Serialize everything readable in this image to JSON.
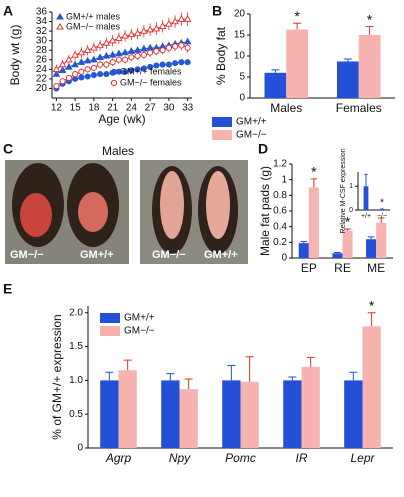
{
  "chart_data": [
    {
      "type": "line",
      "panel": "A",
      "ylabel": "Body wt (g)",
      "xlabel": "Age (wk)",
      "x": [
        12,
        13,
        14,
        15,
        16,
        17,
        18,
        19,
        20,
        21,
        22,
        23,
        24,
        25,
        26,
        27,
        28,
        29,
        30,
        31,
        32,
        33
      ],
      "xlim": [
        11.3,
        33.7
      ],
      "xticks": [
        12,
        15,
        18,
        21,
        24,
        27,
        30,
        33
      ],
      "ylim": [
        18,
        36
      ],
      "yticks": [
        20,
        22,
        24,
        26,
        28,
        30,
        32,
        34,
        36
      ],
      "series": [
        {
          "name": "GM+/+ males",
          "color": "#2457d6",
          "marker": "triangle",
          "filled": true,
          "values": [
            23,
            23.8,
            24.5,
            25,
            25.5,
            25.8,
            26,
            26.5,
            26.8,
            27,
            27.3,
            27.5,
            27.8,
            28,
            28.3,
            28.5,
            28.5,
            28.8,
            29,
            29.3,
            29.5,
            29.8
          ],
          "errors": [
            0.6,
            0.6,
            0.6,
            0.6,
            0.6,
            0.6,
            0.6,
            0.6,
            0.6,
            0.6,
            0.6,
            0.6,
            0.6,
            0.6,
            0.6,
            0.6,
            0.6,
            0.6,
            0.6,
            0.6,
            0.6,
            0.6
          ]
        },
        {
          "name": "GM−/− males",
          "color": "#e0302c",
          "marker": "triangle",
          "filled": false,
          "values": [
            24,
            25,
            26,
            27,
            27.5,
            28,
            28.5,
            29,
            29.5,
            30,
            30.5,
            31,
            31.3,
            31.5,
            32,
            32.3,
            32.5,
            33,
            33.5,
            34,
            34.5,
            34.5
          ],
          "errors": [
            1,
            1,
            1,
            1,
            1.1,
            1.1,
            1.1,
            1.1,
            1.2,
            1.2,
            1.2,
            1.2,
            1.2,
            1.2,
            1.3,
            1.3,
            1.3,
            1.3,
            1.3,
            1.3,
            1.4,
            1.4
          ]
        },
        {
          "name": "GM+/+ females",
          "color": "#2457d6",
          "marker": "circle",
          "filled": true,
          "values": [
            20,
            21,
            21.5,
            22,
            22.3,
            22.5,
            22.8,
            23,
            23,
            23.3,
            23.5,
            23.5,
            23.8,
            24,
            24.2,
            24.5,
            24.8,
            25,
            25,
            25.3,
            25.5,
            25.5
          ],
          "errors": [
            0.4,
            0.4,
            0.4,
            0.4,
            0.4,
            0.4,
            0.4,
            0.4,
            0.4,
            0.4,
            0.4,
            0.4,
            0.4,
            0.4,
            0.4,
            0.4,
            0.4,
            0.4,
            0.4,
            0.4,
            0.4,
            0.4
          ]
        },
        {
          "name": "GM−/− females",
          "color": "#e0302c",
          "marker": "circle",
          "filled": false,
          "values": [
            20.5,
            21.5,
            22.2,
            23,
            23.5,
            24,
            24.3,
            25,
            25,
            25.5,
            26,
            26,
            26.5,
            26.8,
            27,
            27.5,
            27.8,
            28,
            28.5,
            28.8,
            29,
            28.5
          ],
          "errors": [
            0.6,
            0.6,
            0.6,
            0.7,
            0.7,
            0.7,
            0.7,
            0.8,
            0.8,
            0.8,
            0.8,
            0.8,
            0.8,
            0.9,
            0.9,
            0.9,
            0.9,
            0.9,
            1,
            1,
            1,
            1
          ]
        }
      ]
    },
    {
      "type": "bar",
      "panel": "B",
      "ylabel": "% Body fat",
      "categories": [
        "Males",
        "Females"
      ],
      "ylim": [
        0,
        20
      ],
      "yticks": [
        0,
        5,
        10,
        15,
        20
      ],
      "series": [
        {
          "name": "GM+/+",
          "color": "#2450d8",
          "values": [
            6,
            8.7
          ],
          "errors": [
            0.7,
            0.6
          ]
        },
        {
          "name": "GM−/−",
          "color": "#f7b3b0",
          "values": [
            16.3,
            15
          ],
          "errors": [
            1.5,
            2
          ],
          "labels": [
            "*",
            "*"
          ]
        }
      ]
    },
    {
      "type": "photo",
      "panel": "C",
      "title": "Males",
      "labels": [
        "GM−/−",
        "GM+/+",
        "GM−/−",
        "GM+/+"
      ]
    },
    {
      "type": "bar",
      "panel": "D",
      "ylabel": "Male fat pads (g)",
      "categories": [
        "EP",
        "RE",
        "ME"
      ],
      "ylim": [
        0,
        1.2
      ],
      "yticks": [
        0,
        0.2,
        0.4,
        0.6,
        0.8,
        1,
        1.2
      ],
      "series": [
        {
          "name": "GM+/+",
          "color": "#2450d8",
          "values": [
            0.19,
            0.06,
            0.24
          ],
          "errors": [
            0.02,
            0.01,
            0.03
          ]
        },
        {
          "name": "GM−/−",
          "color": "#f7b3b0",
          "values": [
            0.9,
            0.35,
            0.45
          ],
          "errors": [
            0.11,
            0.02,
            0.06
          ],
          "labels": [
            "*",
            "*",
            null
          ]
        }
      ]
    },
    {
      "type": "bar",
      "ylabel": "Relative M-CSF expression",
      "categories": [
        "+/+",
        "−/−"
      ],
      "ylim": [
        0,
        1.6
      ],
      "yticks": [
        0,
        1
      ],
      "series": [
        {
          "color": "#2450d8",
          "values": [
            1,
            0.03
          ],
          "errors": [
            0.5,
            0.02
          ],
          "labels": [
            null,
            "*"
          ]
        }
      ]
    },
    {
      "type": "bar",
      "panel": "E",
      "ylabel": "% of GM+/+ expression",
      "category_style": "italic",
      "categories": [
        "Agrp",
        "Npy",
        "Pomc",
        "IR",
        "Lepr"
      ],
      "ylim": [
        0,
        2.1
      ],
      "yticks": [
        0,
        0.5,
        {
          "value": 1,
          "label": "1.0"
        },
        1.5,
        {
          "value": 2,
          "label": "2.0"
        }
      ],
      "series": [
        {
          "name": "GM+/+",
          "color": "#2450d8",
          "values": [
            1,
            1,
            1,
            1,
            1
          ],
          "errors": [
            0.12,
            0.1,
            0.22,
            0.05,
            0.12
          ]
        },
        {
          "name": "GM−/−",
          "color": "#f7b3b0",
          "values": [
            1.15,
            0.87,
            0.98,
            1.2,
            1.8
          ],
          "errors": [
            0.15,
            0.15,
            0.37,
            0.14,
            0.2
          ],
          "labels": [
            null,
            null,
            null,
            null,
            "*"
          ]
        }
      ]
    }
  ]
}
